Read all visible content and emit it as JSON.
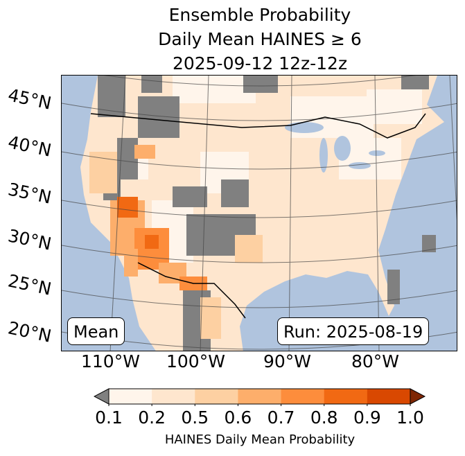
{
  "title": {
    "line1": "Ensemble Probability",
    "line2": "Daily Mean HAINES ≥ 6",
    "line3": "2025-09-12 12z-12z"
  },
  "map": {
    "lat_labels": [
      "45°N",
      "40°N",
      "35°N",
      "30°N",
      "25°N",
      "20°N"
    ],
    "lon_labels": [
      "110°W",
      "100°W",
      "90°W",
      "80°W"
    ],
    "colors": {
      "ocean": "#b0c4de",
      "land_base": "#fee6ce",
      "no_data": "#808080"
    }
  },
  "info": {
    "stat": "Mean",
    "run": "Run: 2025-08-19"
  },
  "colorbar": {
    "ticks": [
      "0.1",
      "0.2",
      "0.5",
      "0.6",
      "0.7",
      "0.8",
      "0.9",
      "1.0"
    ],
    "colors": [
      "#fff5eb",
      "#fee6ce",
      "#fdd0a2",
      "#fdae6b",
      "#fd8d3c",
      "#f16913",
      "#d94801"
    ],
    "under_color": "#808080",
    "over_color": "#7f2704",
    "label": "HAINES Daily Mean Probability"
  }
}
